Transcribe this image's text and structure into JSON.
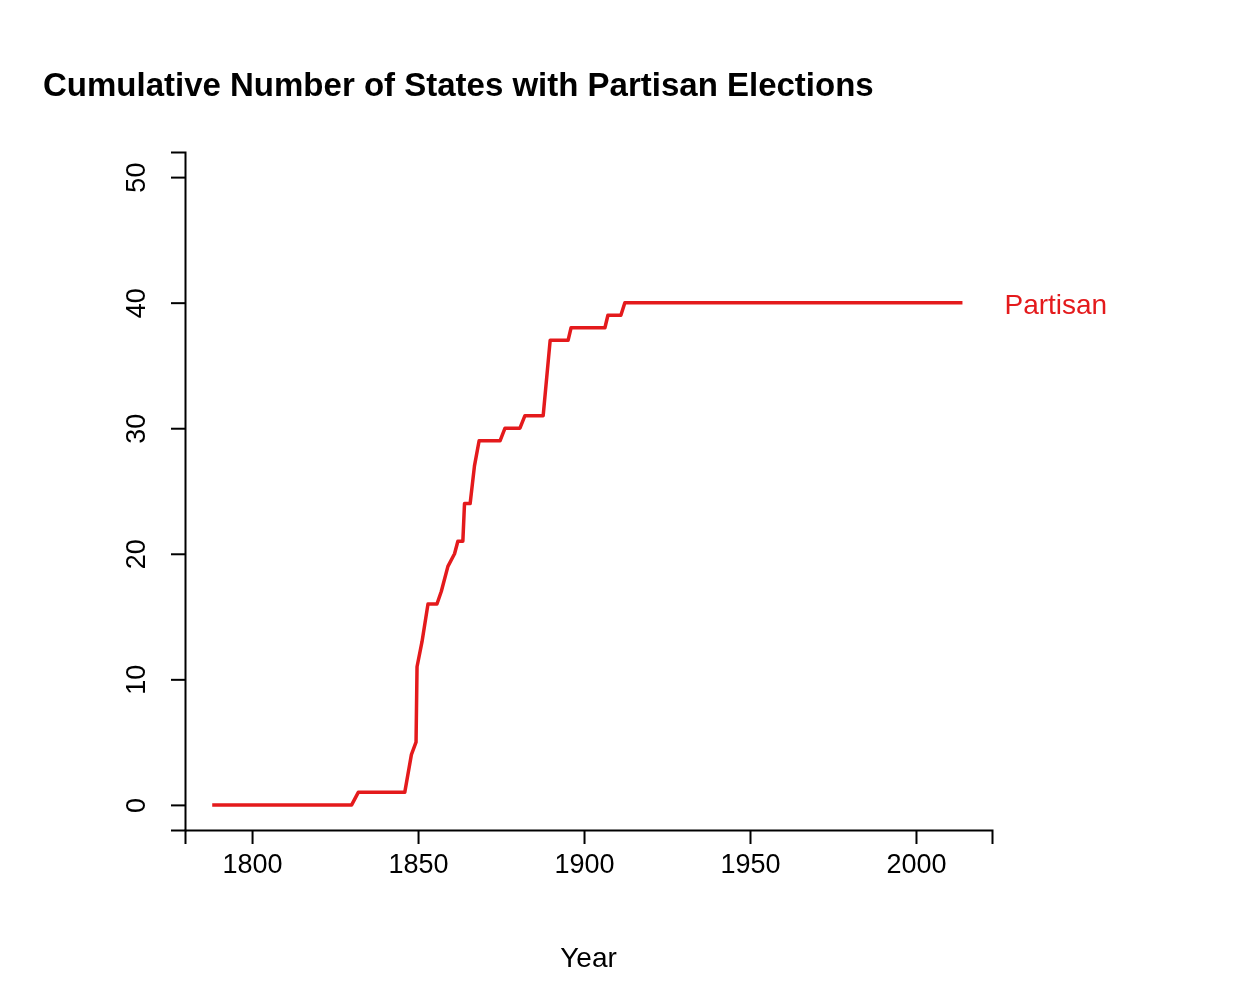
{
  "chart_data": {
    "type": "line",
    "title": "Cumulative Number of States with Partisan Elections",
    "xlabel": "Year",
    "xlim": [
      1779.8,
      2022.9
    ],
    "xticks": [
      1800,
      1850,
      1900,
      1950,
      2000
    ],
    "ylim": [
      -2,
      52
    ],
    "yticks": [
      0,
      10,
      20,
      30,
      40,
      50
    ],
    "grid": false,
    "series": [
      {
        "name": "Partisan",
        "color": "#e41a1c",
        "x": [
          1788,
          1830,
          1832,
          1846,
          1848,
          1849.4,
          1849.7,
          1851.2,
          1853,
          1855.7,
          1857,
          1859,
          1861,
          1862,
          1863.5,
          1864,
          1865.7,
          1867,
          1868.4,
          1874.7,
          1876.2,
          1880.7,
          1882.2,
          1887.7,
          1889.8,
          1895.2,
          1896.1,
          1906.3,
          1907.2,
          1911.1,
          1912.3,
          2014
        ],
        "values": [
          0,
          0,
          1,
          1,
          4,
          5,
          11,
          13,
          16,
          16,
          17,
          19,
          20,
          21,
          21,
          24,
          24,
          27,
          29,
          29,
          30,
          30,
          31,
          31,
          37,
          37,
          38,
          38,
          39,
          39,
          40,
          40
        ]
      }
    ]
  }
}
